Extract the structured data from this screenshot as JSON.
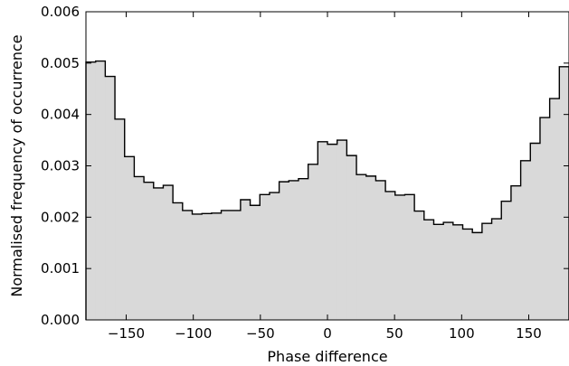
{
  "chart_data": {
    "type": "histogram-step",
    "title": "",
    "xlabel": "Phase difference",
    "ylabel": "Normalised frequency of occurrence",
    "xlim": [
      -180,
      180
    ],
    "ylim": [
      0,
      0.006
    ],
    "xticks": [
      -150,
      -100,
      -50,
      0,
      50,
      100,
      150
    ],
    "xtick_labels": [
      "−150",
      "−100",
      "−50",
      "0",
      "50",
      "100",
      "150"
    ],
    "yticks": [
      0.0,
      0.001,
      0.002,
      0.003,
      0.004,
      0.005,
      0.006
    ],
    "ytick_labels": [
      "0.000",
      "0.001",
      "0.002",
      "0.003",
      "0.004",
      "0.005",
      "0.006"
    ],
    "bin_width": 7.2,
    "bin_start": -180,
    "values": [
      0.00502,
      0.00504,
      0.00474,
      0.00391,
      0.00318,
      0.00279,
      0.00268,
      0.00257,
      0.00262,
      0.00228,
      0.00213,
      0.00206,
      0.00207,
      0.00208,
      0.00213,
      0.00213,
      0.00234,
      0.00223,
      0.00244,
      0.00248,
      0.00269,
      0.00271,
      0.00275,
      0.00303,
      0.00347,
      0.00342,
      0.0035,
      0.0032,
      0.00283,
      0.0028,
      0.00271,
      0.0025,
      0.00243,
      0.00244,
      0.00212,
      0.00195,
      0.00186,
      0.0019,
      0.00185,
      0.00177,
      0.0017,
      0.00188,
      0.00197,
      0.00231,
      0.00261,
      0.0031,
      0.00344,
      0.00394,
      0.00431,
      0.00493
    ],
    "fill_color": "#d9d9d9",
    "line_color": "#000000",
    "grid": false,
    "legend": "none"
  }
}
